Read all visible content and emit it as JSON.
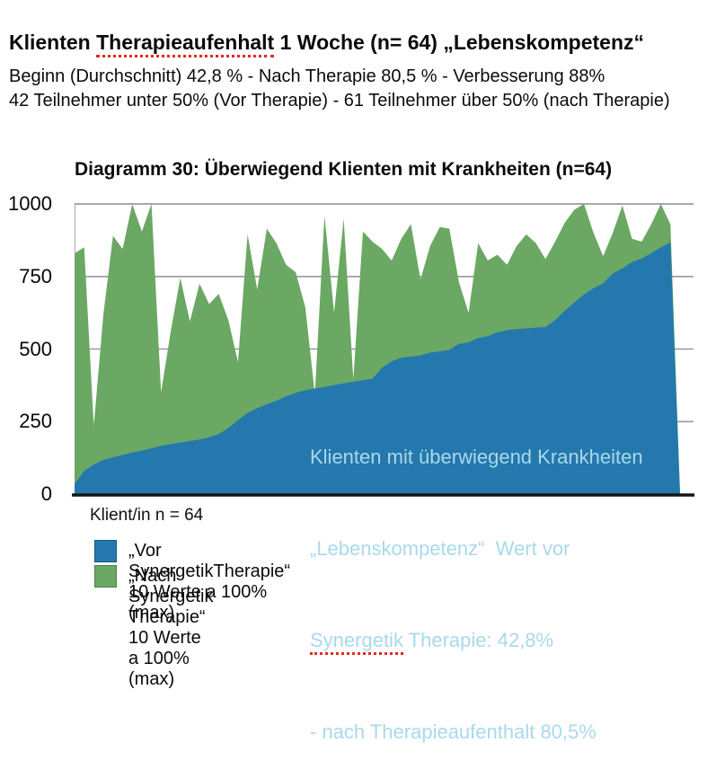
{
  "header": {
    "title_prefix": "Klienten ",
    "title_underlined": "Therapieaufenhalt",
    "title_suffix": " 1 Woche (n= 64) „Lebenskompetenz“",
    "subtitle1": "Beginn (Durchschnitt) 42,8 % - Nach Therapie 80,5 % - Verbesserung 88%",
    "subtitle2": "42 Teilnehmer unter 50% (Vor Therapie) - 61 Teilnehmer über 50% (nach Therapie)"
  },
  "chart": {
    "title": "Diagramm 30: Überwiegend Klienten mit Krankheiten (n=64)",
    "x_caption": "Klient/in n = 64",
    "annotation": {
      "line1": "Klienten mit überwiegend Krankheiten",
      "line2": "„Lebenskompetenz“  Wert vor",
      "line3_underlined": "Synergetik",
      "line3_rest": " Therapie: 42,8%",
      "line4": "- nach Therapieaufenthalt 80,5%"
    },
    "legend": [
      {
        "color": "#2478ad",
        "label": "„Vor SynergetikTherapie“ 10 Werte a 100% (max)"
      },
      {
        "color": "#6ba864",
        "label": "„Nach Synergetik Therapie“  10 Werte a 100% (max)"
      }
    ]
  },
  "chart_data": {
    "type": "area",
    "title": "Diagramm 30: Überwiegend Klienten mit Krankheiten (n=64)",
    "xlabel": "Klient/in n = 64",
    "ylabel": "",
    "ylim": [
      0,
      1000
    ],
    "yticks": [
      0,
      250,
      500,
      750,
      1000
    ],
    "grid": "horizontal",
    "legend_position": "bottom",
    "n_points": 64,
    "series": [
      {
        "name": "„Vor SynergetikTherapie“ 10 Werte a 100% (max)",
        "color": "#2478ad",
        "values": [
          35,
          80,
          102,
          118,
          127,
          135,
          143,
          150,
          158,
          167,
          172,
          178,
          183,
          188,
          196,
          207,
          228,
          255,
          280,
          296,
          310,
          321,
          337,
          349,
          358,
          364,
          369,
          376,
          382,
          387,
          392,
          398,
          436,
          458,
          470,
          474,
          478,
          488,
          492,
          497,
          518,
          523,
          538,
          544,
          558,
          565,
          569,
          571,
          574,
          576,
          600,
          632,
          660,
          688,
          710,
          726,
          760,
          778,
          800,
          812,
          830,
          850,
          868,
          0
        ]
      },
      {
        "name": "„Nach Synergetik Therapie“ 10 Werte a 100% (max)",
        "color": "#6ba864",
        "values": [
          830,
          850,
          235,
          620,
          890,
          845,
          1000,
          905,
          1000,
          350,
          560,
          745,
          595,
          725,
          655,
          690,
          600,
          455,
          895,
          705,
          915,
          865,
          790,
          765,
          645,
          345,
          960,
          625,
          950,
          395,
          905,
          870,
          845,
          805,
          880,
          930,
          740,
          855,
          920,
          915,
          730,
          625,
          865,
          805,
          825,
          790,
          855,
          895,
          865,
          810,
          870,
          935,
          980,
          1000,
          900,
          820,
          900,
          995,
          880,
          870,
          930,
          1000,
          930,
          0
        ]
      }
    ],
    "annotation_text": "Klienten mit überwiegend Krankheiten „Lebenskompetenz“ Wert vor Synergetik Therapie: 42,8% - nach Therapieaufenthalt 80,5%",
    "colors": {
      "vor": "#2478ad",
      "nach": "#6ba864",
      "annotation_text": "#a9d9ec",
      "gridline": "#999999",
      "baseline": "#151515",
      "squiggle": "#e22a20"
    }
  }
}
